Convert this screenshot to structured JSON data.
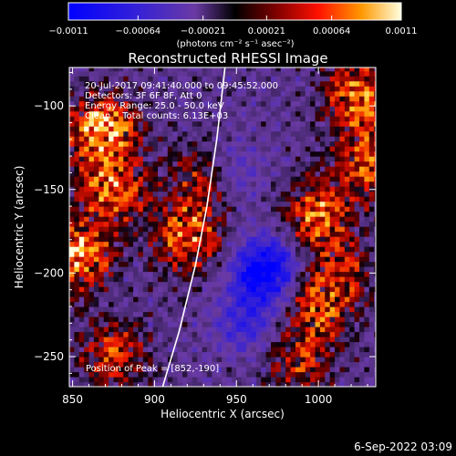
{
  "chart_data": {
    "type": "heatmap",
    "title": "Reconstructed RHESSI Image",
    "xlabel": "Heliocentric X (arcsec)",
    "ylabel": "Heliocentric Y (arcsec)",
    "xlim": [
      848,
      1035
    ],
    "ylim": [
      -268,
      -77
    ],
    "xticks": [
      850,
      900,
      950,
      1000
    ],
    "yticks": [
      -100,
      -150,
      -200,
      -250
    ],
    "xtick_labels": [
      "850",
      "900",
      "950",
      "1000"
    ],
    "ytick_labels": [
      "−100",
      "−150",
      "−200",
      "−250"
    ],
    "colorbar": {
      "units": "(photons cm⁻² s⁻¹ asec⁻²)",
      "range": [
        -0.0011,
        0.0011
      ],
      "ticks": [
        -0.0011,
        -0.00064,
        -0.00021,
        0.00021,
        0.00064,
        0.0011
      ],
      "tick_labels": [
        "−0.0011",
        "−0.00064",
        "−0.00021",
        "0.00021",
        "0.00064",
        "0.0011"
      ]
    },
    "annotations": [
      "20-Jul-2017 09:41:40.000 to 09:45:52.000",
      "Detectors: 3F 6F 8F, Att 0",
      "Energy Range: 25.0 - 50.0 keV",
      "Clean    Total counts: 6.13E+03"
    ],
    "peak_label": "Position of Peak = [852,-190]",
    "limb_curve": [
      [
        905,
        -268
      ],
      [
        915,
        -235
      ],
      [
        925,
        -195
      ],
      [
        932,
        -160
      ],
      [
        938,
        -120
      ],
      [
        943,
        -77
      ]
    ],
    "emission_blobs": [
      {
        "x": 868,
        "y": -115,
        "peak": 0.0011
      },
      {
        "x": 852,
        "y": -190,
        "peak": 0.0011
      },
      {
        "x": 875,
        "y": -150,
        "peak": 0.0008
      },
      {
        "x": 920,
        "y": -178,
        "peak": 0.0008
      },
      {
        "x": 930,
        "y": -143,
        "peak": 0.0006
      },
      {
        "x": 1000,
        "y": -165,
        "peak": 0.0008
      },
      {
        "x": 1030,
        "y": -135,
        "peak": 0.0007
      },
      {
        "x": 1025,
        "y": -95,
        "peak": 0.0009
      },
      {
        "x": 1000,
        "y": -222,
        "peak": 0.0006
      },
      {
        "x": 988,
        "y": -253,
        "peak": 0.0005
      },
      {
        "x": 875,
        "y": -248,
        "peak": 0.0006
      },
      {
        "x": 1012,
        "y": -200,
        "peak": 0.0005
      }
    ],
    "negative_blobs": [
      {
        "x": 968,
        "y": -198,
        "peak": -0.0009
      },
      {
        "x": 945,
        "y": -140,
        "peak": -0.0004
      },
      {
        "x": 955,
        "y": -230,
        "peak": -0.0004
      }
    ]
  },
  "footer": {
    "date": "6-Sep-2022 03:09"
  }
}
